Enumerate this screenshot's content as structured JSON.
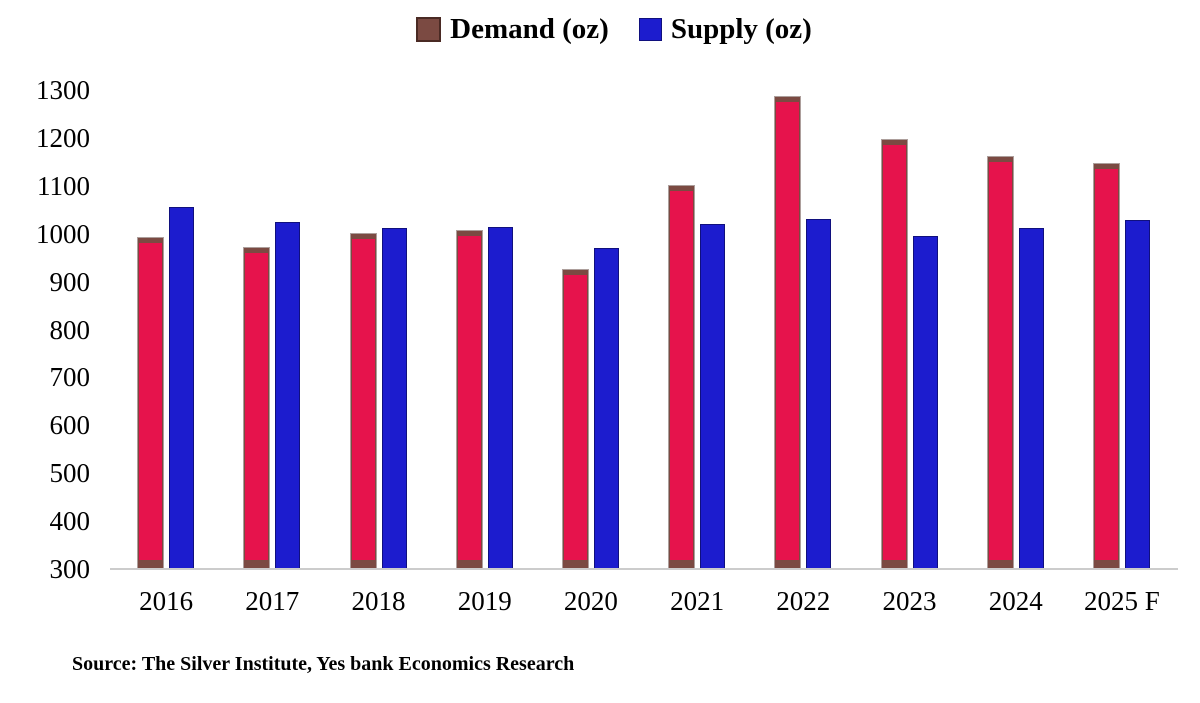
{
  "chart_data": {
    "type": "bar",
    "title": "",
    "categories": [
      "2016",
      "2017",
      "2018",
      "2019",
      "2020",
      "2021",
      "2022",
      "2023",
      "2024",
      "2025 F"
    ],
    "series": [
      {
        "name": "Demand (oz)",
        "color": "#E6134C",
        "cap_color": "#7B4A42",
        "values": [
          990,
          970,
          1000,
          1005,
          925,
          1100,
          1285,
          1195,
          1160,
          1145
        ]
      },
      {
        "name": "Supply (oz)",
        "color": "#1C1CCE",
        "values": [
          1055,
          1025,
          1012,
          1015,
          970,
          1020,
          1030,
          995,
          1012,
          1028
        ]
      }
    ],
    "xlabel": "",
    "ylabel": "",
    "ylim": [
      300,
      1300
    ],
    "yticks": [
      1300,
      1200,
      1100,
      1000,
      900,
      800,
      700,
      600,
      500,
      400,
      300
    ],
    "grid": false,
    "legend_position": "top",
    "source_note": "Source: The Silver Institute, Yes bank Economics Research"
  },
  "colors": {
    "background": "#FFFFFF",
    "axis_line": "#CCCCCC",
    "text": "#000000"
  }
}
